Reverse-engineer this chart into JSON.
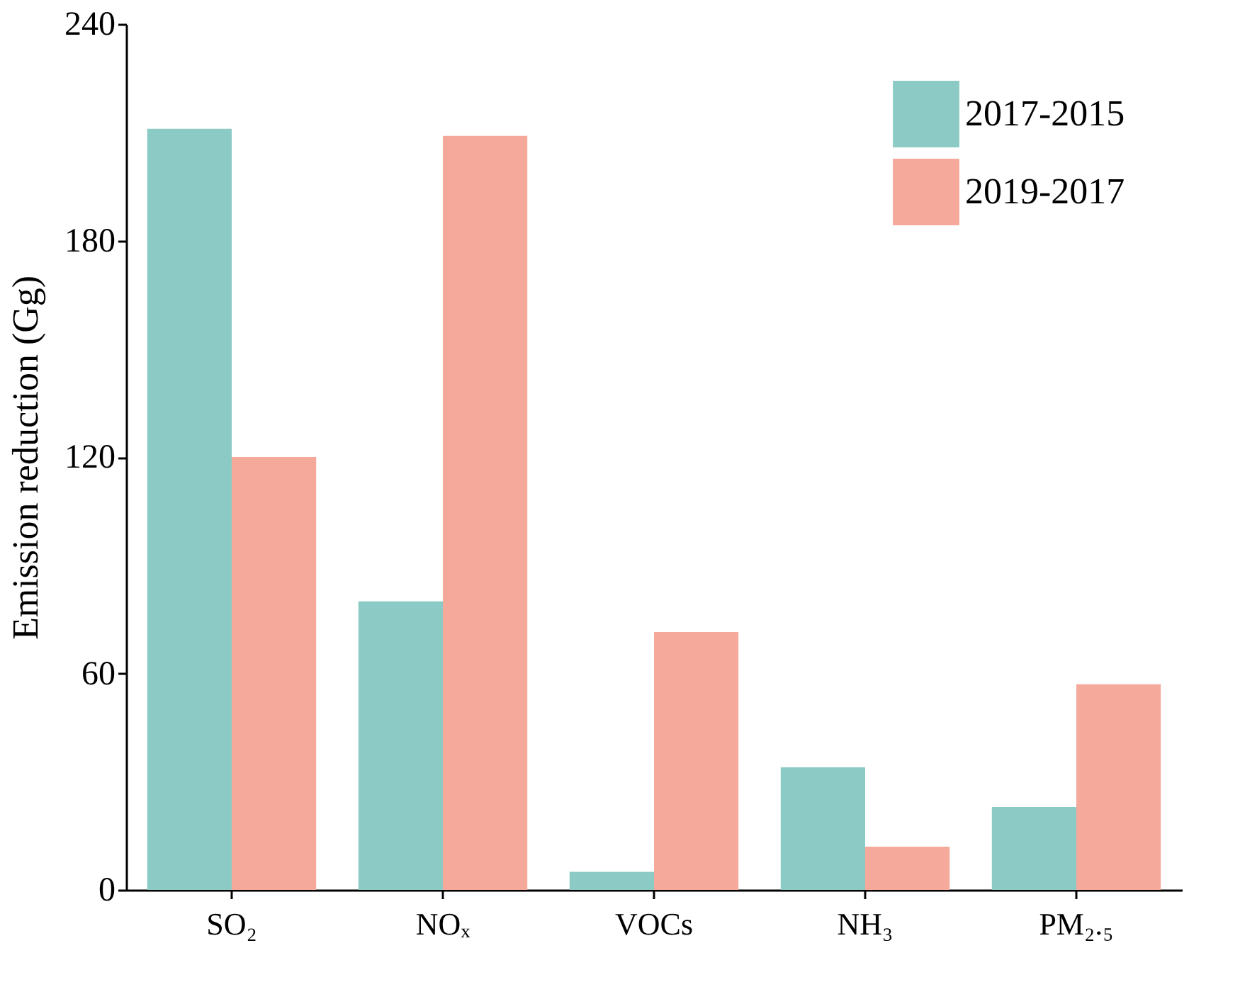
{
  "chart_data": {
    "type": "bar",
    "categories": [
      "SO₂",
      "NOₓ",
      "VOCs",
      "NH₃",
      "PM₂.₅"
    ],
    "series": [
      {
        "name": "2017-2015",
        "color": "#8ccbc5",
        "values": [
          211,
          80,
          5,
          34,
          23
        ]
      },
      {
        "name": "2019-2017",
        "color": "#f4a99b",
        "values": [
          120,
          209,
          71.5,
          12,
          57
        ]
      }
    ],
    "ylabel": "Emission reduction (Gg)",
    "ylim": [
      0,
      240
    ],
    "yticks": [
      0,
      60,
      120,
      180,
      240
    ],
    "grid": false,
    "legend": "top right"
  }
}
